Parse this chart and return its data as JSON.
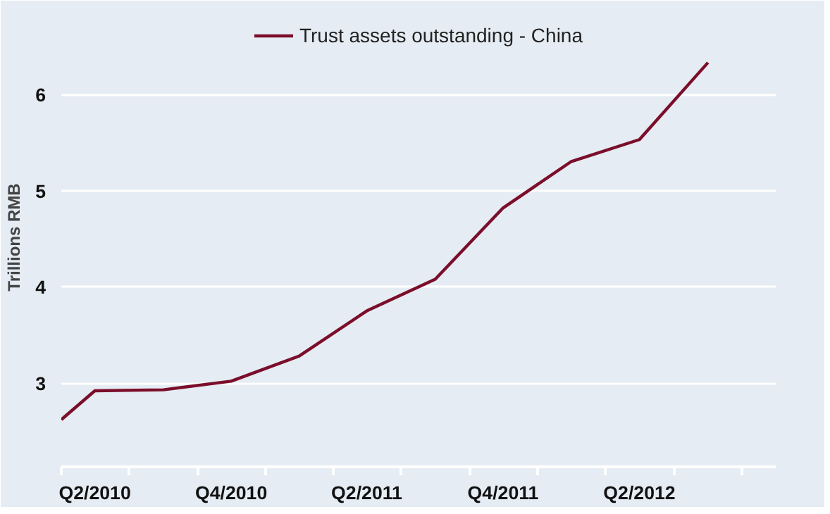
{
  "chart_data": {
    "type": "line",
    "ylabel": "Trillions RMB",
    "x": [
      "2010-04-01",
      "2010-05-16",
      "2010-08-16",
      "2010-11-15",
      "2011-02-14",
      "2011-05-16",
      "2011-08-16",
      "2011-11-15",
      "2012-02-14",
      "2012-05-16",
      "2012-08-16"
    ],
    "series": [
      {
        "name": "Trust assets outstanding - China",
        "color": "#7b0e2a",
        "values": [
          2.62,
          2.92,
          2.93,
          3.02,
          3.28,
          3.75,
          4.08,
          4.82,
          5.3,
          5.53,
          6.33
        ]
      }
    ],
    "xlim": [
      "2010-04-01",
      "2012-11-15"
    ],
    "xticks": [
      {
        "value": "2010-04-01",
        "label": null
      },
      {
        "value": "2010-05-16",
        "label": "Q2/2010"
      },
      {
        "value": "2010-07-01",
        "label": null
      },
      {
        "value": "2010-10-01",
        "label": null
      },
      {
        "value": "2010-11-15",
        "label": "Q4/2010"
      },
      {
        "value": "2011-01-01",
        "label": null
      },
      {
        "value": "2011-04-01",
        "label": null
      },
      {
        "value": "2011-05-16",
        "label": "Q2/2011"
      },
      {
        "value": "2011-07-01",
        "label": null
      },
      {
        "value": "2011-10-01",
        "label": null
      },
      {
        "value": "2011-11-15",
        "label": "Q4/2011"
      },
      {
        "value": "2012-01-01",
        "label": null
      },
      {
        "value": "2012-04-01",
        "label": null
      },
      {
        "value": "2012-05-16",
        "label": "Q2/2012"
      },
      {
        "value": "2012-07-01",
        "label": null
      },
      {
        "value": "2012-10-01",
        "label": null
      }
    ],
    "ylim": [
      2.13,
      6.9
    ],
    "yticks": [
      3,
      4,
      5,
      6
    ],
    "grid": "y",
    "legend": "top",
    "marker": "none",
    "line_style": "solid"
  }
}
